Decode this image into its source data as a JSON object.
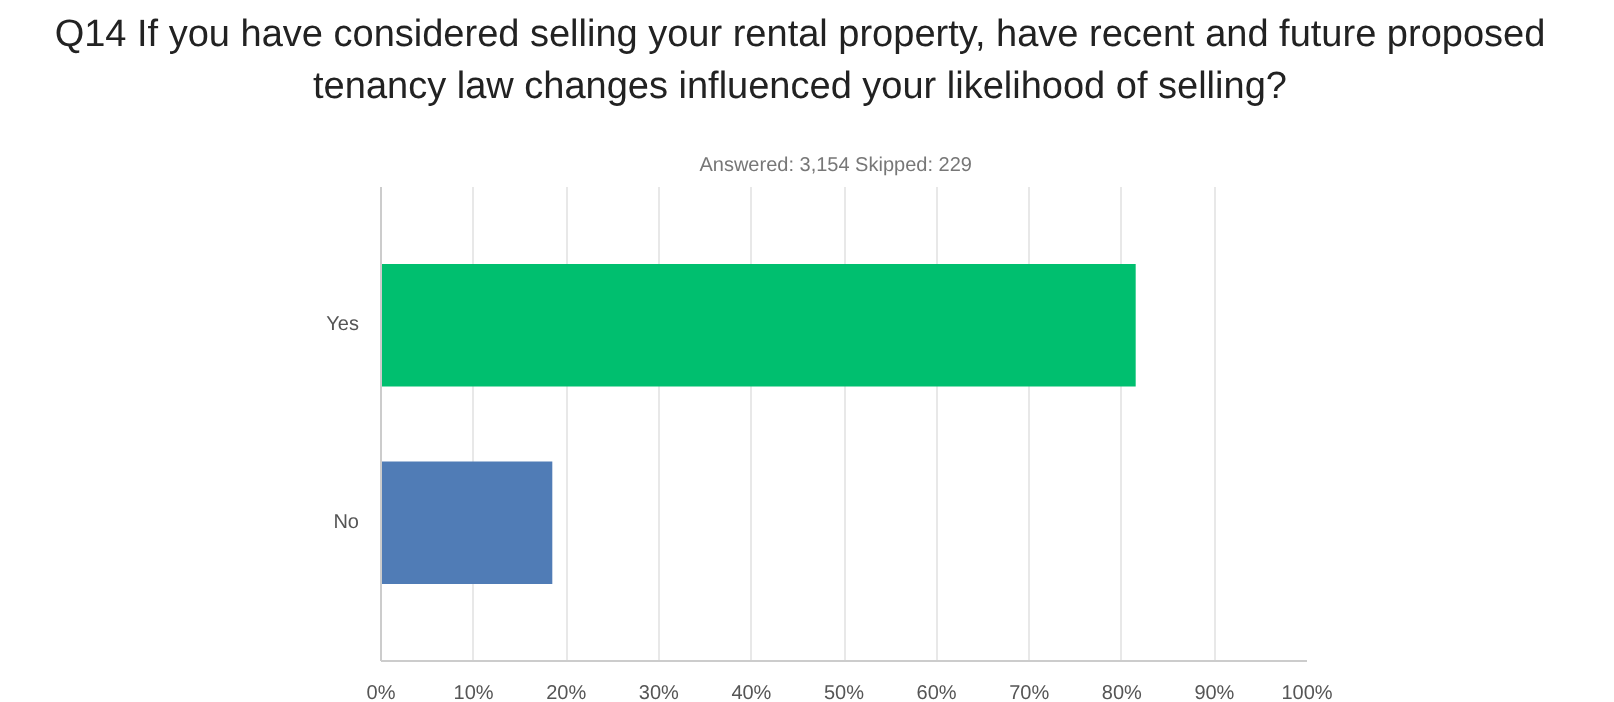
{
  "chart_data": {
    "type": "bar",
    "orientation": "horizontal",
    "title": "Q14 If you have considered selling your rental property, have recent and future proposed tenancy law changes influenced your likelihood of selling?",
    "subtitle": "Answered: 3,154    Skipped: 229",
    "categories": [
      "Yes",
      "No"
    ],
    "values": [
      81.5,
      18.5
    ],
    "colors": [
      "#00bf6f",
      "#507cb6"
    ],
    "xlim": [
      0,
      100
    ],
    "xticks": [
      {
        "value": 0,
        "label": "0%"
      },
      {
        "value": 10,
        "label": "10%"
      },
      {
        "value": 20,
        "label": "20%"
      },
      {
        "value": 30,
        "label": "30%"
      },
      {
        "value": 40,
        "label": "40%"
      },
      {
        "value": 50,
        "label": "50%"
      },
      {
        "value": 60,
        "label": "60%"
      },
      {
        "value": 70,
        "label": "70%"
      },
      {
        "value": 80,
        "label": "80%"
      },
      {
        "value": 90,
        "label": "90%"
      },
      {
        "value": 100,
        "label": "100%"
      }
    ],
    "grid": "x"
  }
}
